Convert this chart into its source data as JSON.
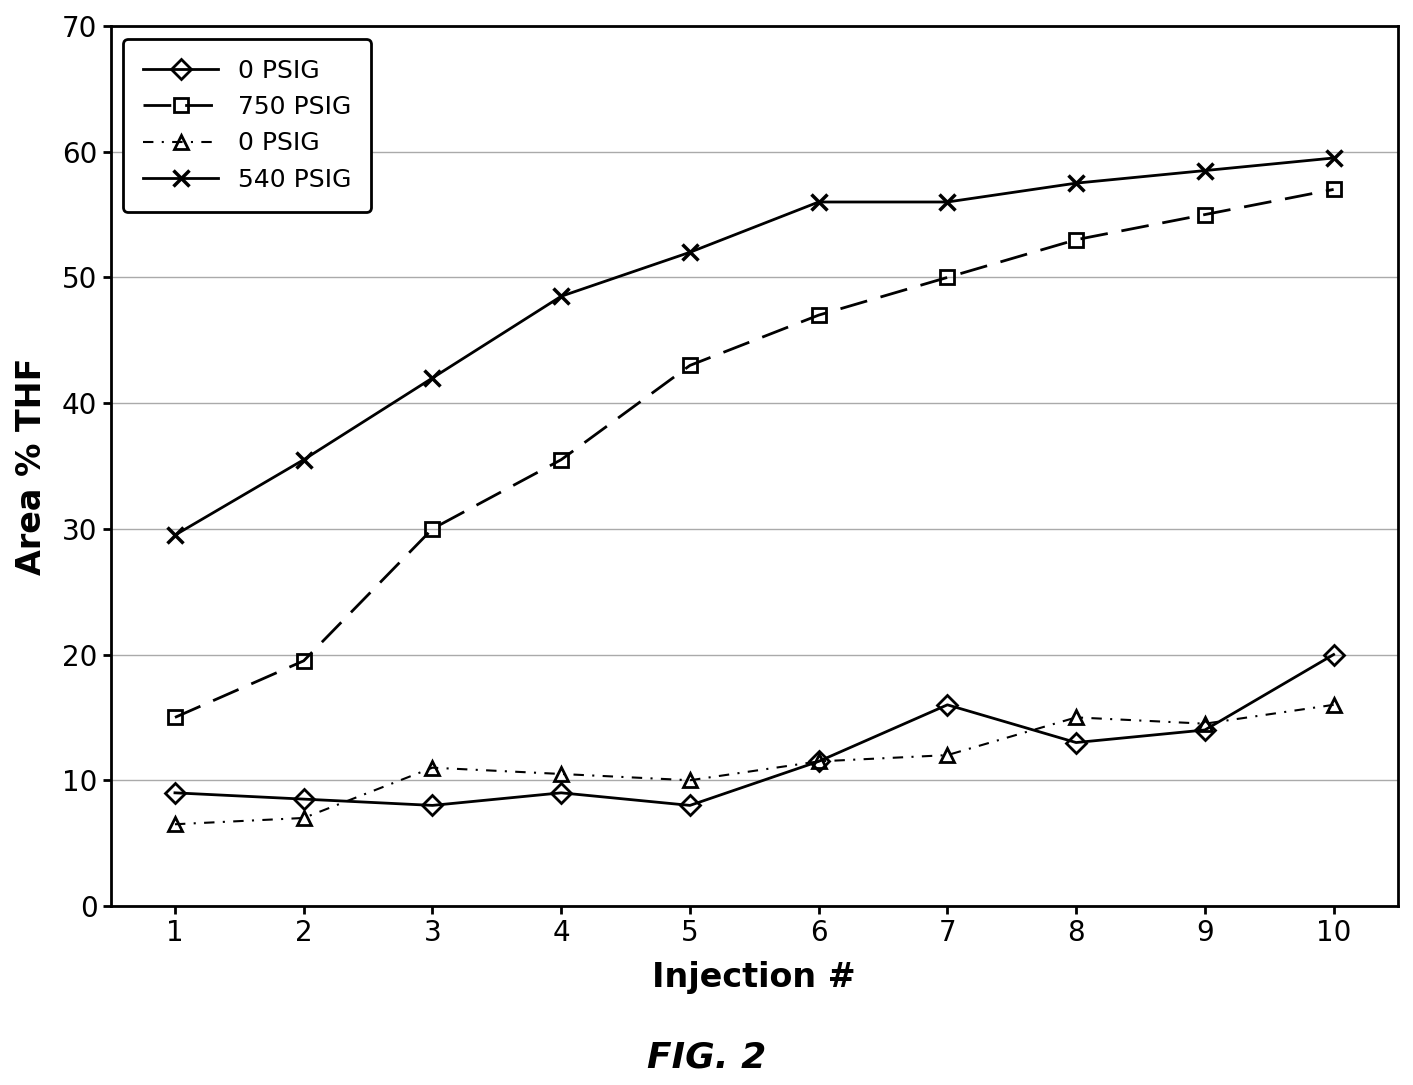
{
  "x": [
    1,
    2,
    3,
    4,
    5,
    6,
    7,
    8,
    9,
    10
  ],
  "series": [
    {
      "label": "0 PSIG",
      "y": [
        9,
        8.5,
        8,
        9,
        8,
        11.5,
        16,
        13,
        14,
        20
      ],
      "linestyle": "-",
      "marker": "D",
      "color": "#000000",
      "linewidth": 2,
      "markersize": 10
    },
    {
      "label": "750 PSIG",
      "y": [
        15,
        19.5,
        30,
        35.5,
        43,
        47,
        50,
        53,
        55,
        57
      ],
      "linestyle": "--",
      "marker": "s",
      "color": "#000000",
      "linewidth": 2,
      "markersize": 10
    },
    {
      "label": "0 PSIG",
      "y": [
        6.5,
        7,
        11,
        10.5,
        10,
        11.5,
        12,
        15,
        14.5,
        16
      ],
      "linestyle": "--",
      "marker": "^",
      "color": "#000000",
      "linewidth": 1.5,
      "markersize": 10
    },
    {
      "label": "540 PSIG",
      "y": [
        29.5,
        35.5,
        42,
        48.5,
        52,
        56,
        56,
        57.5,
        58.5,
        59.5
      ],
      "linestyle": "-",
      "marker": "x",
      "color": "#000000",
      "linewidth": 2,
      "markersize": 12
    }
  ],
  "xlabel": "Injection #",
  "ylabel": "Area % THF",
  "ylim": [
    0,
    70
  ],
  "xlim": [
    0.5,
    10.5
  ],
  "yticks": [
    0,
    10,
    20,
    30,
    40,
    50,
    60,
    70
  ],
  "xticks": [
    1,
    2,
    3,
    4,
    5,
    6,
    7,
    8,
    9,
    10
  ],
  "title": "FIG. 2",
  "background_color": "#ffffff",
  "grid_color": "#aaaaaa",
  "figure_size": [
    14.13,
    10.85
  ]
}
